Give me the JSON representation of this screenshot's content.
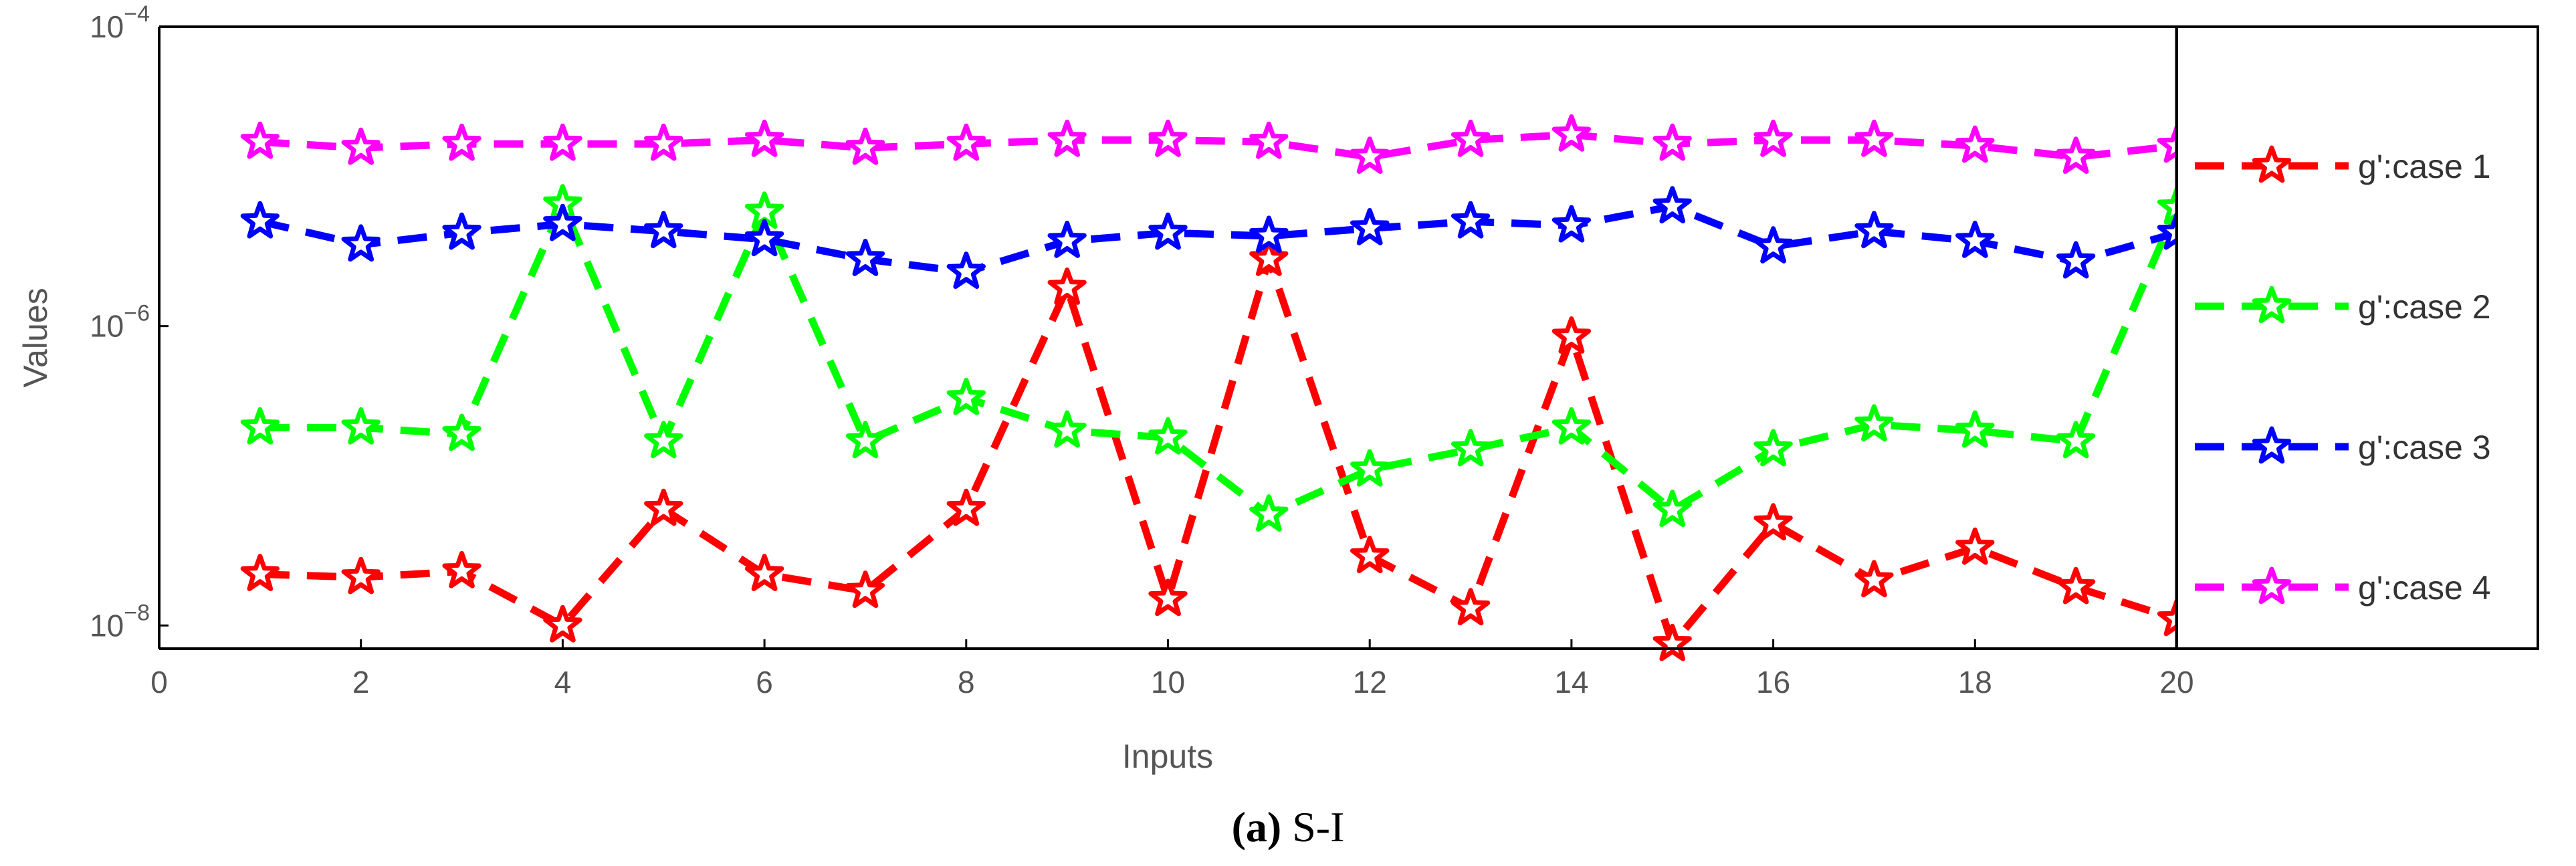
{
  "chart_data": {
    "type": "line",
    "yscale": "log",
    "xlabel": "Inputs",
    "ylabel": "Values",
    "xlim": [
      0,
      20
    ],
    "ylim": [
      7e-09,
      0.0001
    ],
    "xticks": [
      0,
      2,
      4,
      6,
      8,
      10,
      12,
      14,
      16,
      18,
      20
    ],
    "xtick_labels": [
      "0",
      "2",
      "4",
      "6",
      "8",
      "10",
      "12",
      "14",
      "16",
      "18",
      "20"
    ],
    "yticks": [
      {
        "value": 0.0001,
        "base": "10",
        "exp": "−4"
      },
      {
        "value": 1e-06,
        "base": "10",
        "exp": "−6"
      },
      {
        "value": 1e-08,
        "base": "10",
        "exp": "−8"
      }
    ],
    "x": [
      1,
      2,
      3,
      4,
      5,
      6,
      7,
      8,
      9,
      10,
      11,
      12,
      13,
      14,
      15,
      16,
      17,
      18,
      19,
      20
    ],
    "series": [
      {
        "name": "g':case 1",
        "color": "#ff0000",
        "values": [
          2.2e-08,
          2.1e-08,
          2.3e-08,
          1e-08,
          6e-08,
          2.2e-08,
          1.7e-08,
          6e-08,
          1.8e-06,
          1.5e-08,
          2.8e-06,
          2.9e-08,
          1.3e-08,
          8.5e-07,
          7.5e-09,
          4.8e-08,
          2e-08,
          3.3e-08,
          1.8e-08,
          1.1e-08
        ]
      },
      {
        "name": "g':case 2",
        "color": "#00ff00",
        "values": [
          2.1e-07,
          2.1e-07,
          1.9e-07,
          6.5e-06,
          1.7e-07,
          5.8e-06,
          1.7e-07,
          3.3e-07,
          2e-07,
          1.8e-07,
          5.5e-08,
          1.1e-07,
          1.5e-07,
          2.1e-07,
          5.9e-08,
          1.5e-07,
          2.2e-07,
          2e-07,
          1.7e-07,
          6.2e-06
        ]
      },
      {
        "name": "g':case 3",
        "color": "#0000ff",
        "values": [
          5e-06,
          3.5e-06,
          4.2e-06,
          4.8e-06,
          4.3e-06,
          3.8e-06,
          2.8e-06,
          2.3e-06,
          3.7e-06,
          4.2e-06,
          4e-06,
          4.5e-06,
          5e-06,
          4.7e-06,
          6.3e-06,
          3.4e-06,
          4.3e-06,
          3.7e-06,
          2.7e-06,
          4.2e-06
        ]
      },
      {
        "name": "g':case 4",
        "color": "#ff00ff",
        "values": [
          1.7e-05,
          1.55e-05,
          1.65e-05,
          1.65e-05,
          1.65e-05,
          1.75e-05,
          1.55e-05,
          1.65e-05,
          1.75e-05,
          1.75e-05,
          1.7e-05,
          1.35e-05,
          1.75e-05,
          1.9e-05,
          1.65e-05,
          1.75e-05,
          1.75e-05,
          1.6e-05,
          1.35e-05,
          1.6e-05
        ]
      }
    ]
  },
  "caption": {
    "label": "(a)",
    "text": " S-I"
  }
}
